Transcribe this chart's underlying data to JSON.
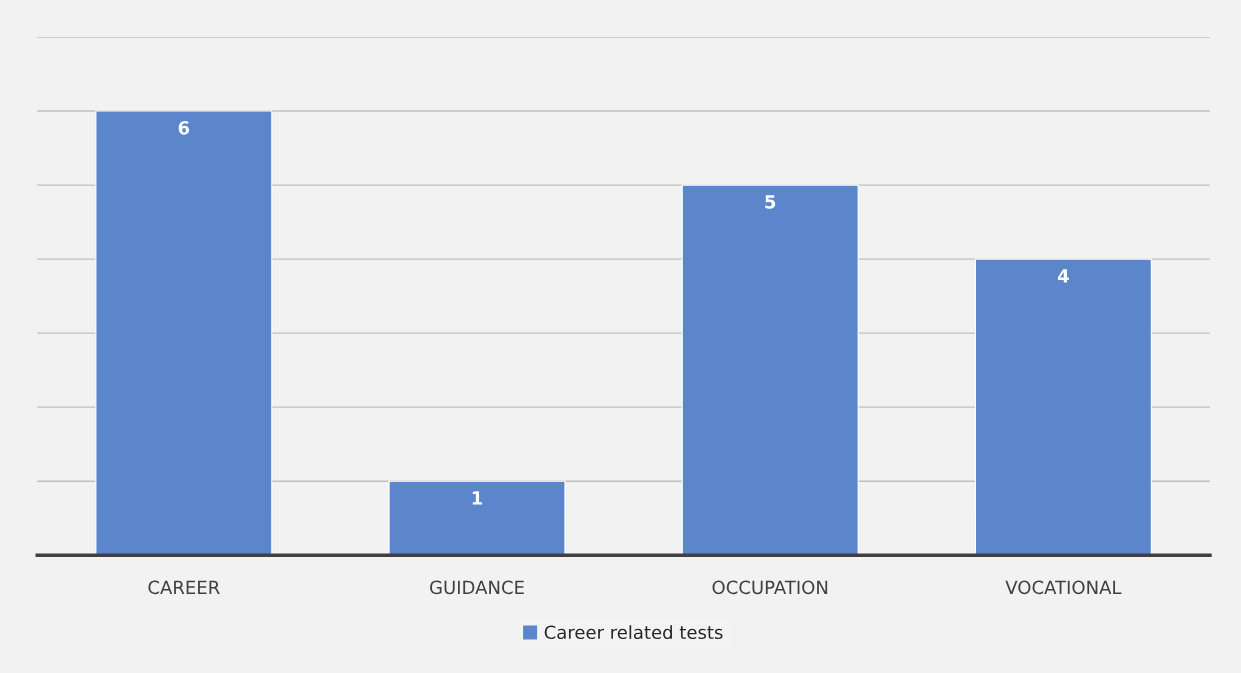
{
  "chart_data": {
    "type": "bar",
    "categories": [
      "CAREER",
      "GUIDANCE",
      "OCCUPATION",
      "VOCATIONAL"
    ],
    "series": [
      {
        "name": "Career related tests",
        "color": "#5b86cc",
        "values": [
          6,
          1,
          5,
          4
        ]
      }
    ],
    "ylim": [
      0,
      7
    ],
    "yticks": [
      {
        "value": 0,
        "label": null
      },
      {
        "value": 1,
        "label": null
      },
      {
        "value": 2,
        "label": null
      },
      {
        "value": 3,
        "label": null
      },
      {
        "value": 4,
        "label": null
      },
      {
        "value": 5,
        "label": null
      },
      {
        "value": 6,
        "label": null
      },
      {
        "value": 7,
        "label": null
      }
    ],
    "tick_labels": "x",
    "grid": "y",
    "legend": "bottom",
    "data_labels": true
  }
}
